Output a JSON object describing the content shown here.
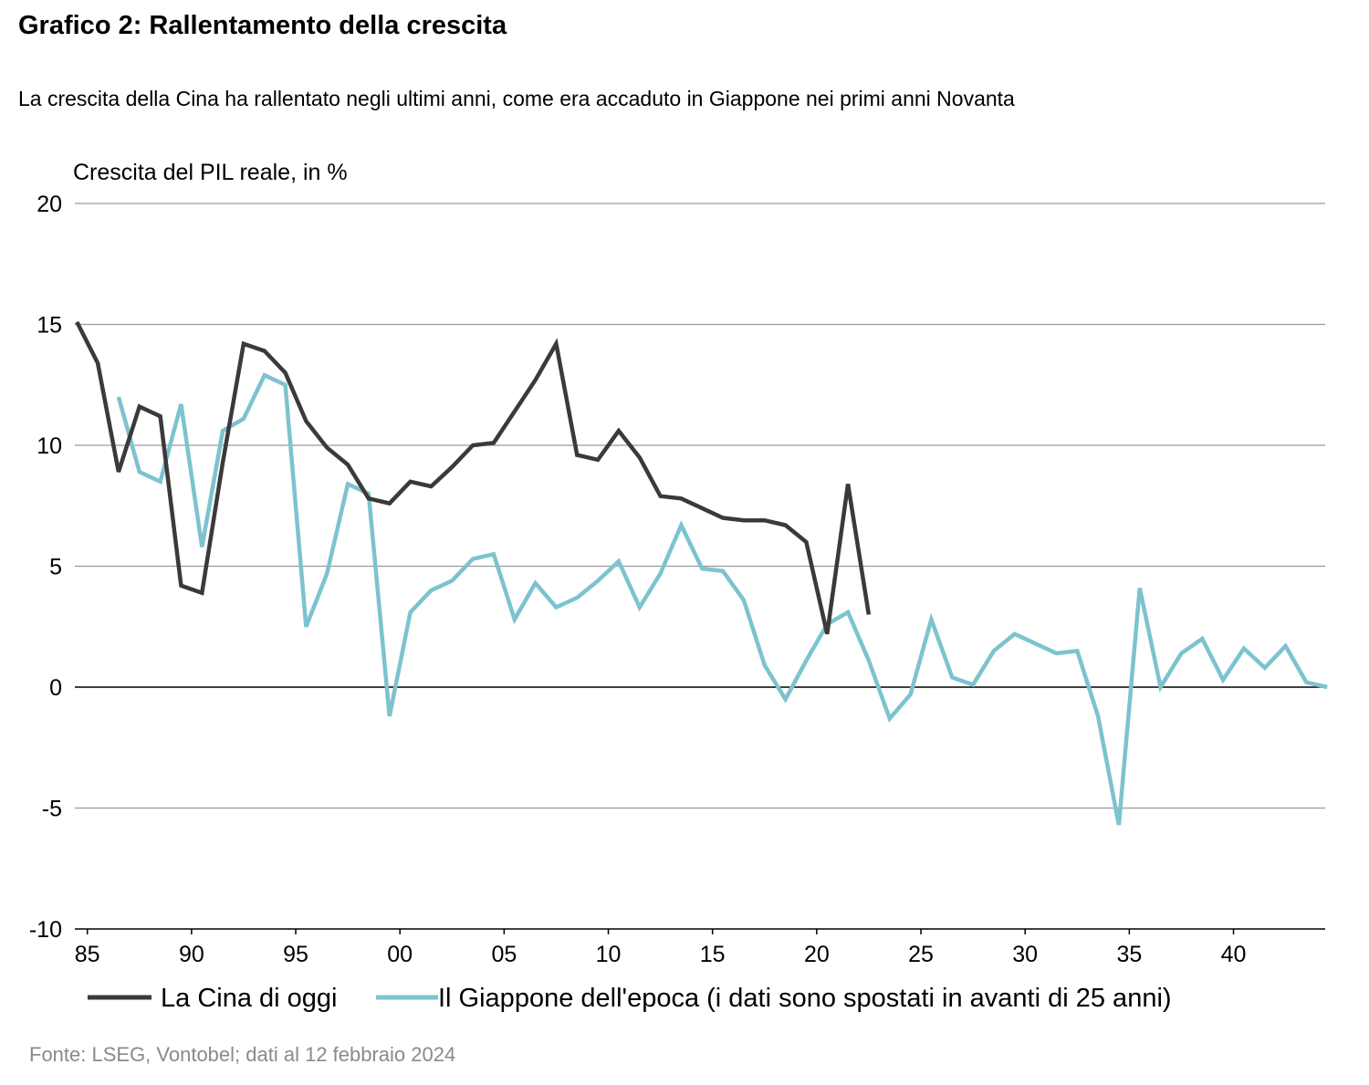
{
  "page": {
    "title": "Grafico 2: Rallentamento della crescita",
    "subtitle": "La crescita della Cina ha rallentato negli ultimi anni, come era accaduto in Giappone nei primi anni Novanta",
    "source": "Fonte: LSEG, Vontobel; dati al 12 febbraio 2024"
  },
  "chart_data": {
    "type": "line",
    "title": "Grafico 2: Rallentamento della crescita",
    "ylabel": "Crescita del PIL reale, in %",
    "xlabel": "",
    "ylim": [
      -10,
      20
    ],
    "xlim": [
      1984.4,
      2044.4
    ],
    "yticks": [
      20,
      15,
      10,
      5,
      0,
      -5,
      -10
    ],
    "yticklabels": [
      "20",
      "15",
      "10",
      "5",
      "0",
      "-5",
      "-10"
    ],
    "xticks": [
      1985,
      1990,
      1995,
      2000,
      2005,
      2010,
      2015,
      2020,
      2025,
      2030,
      2035,
      2040
    ],
    "xticklabels": [
      "85",
      "90",
      "95",
      "00",
      "05",
      "10",
      "15",
      "20",
      "25",
      "30",
      "35",
      "40"
    ],
    "grid": "horizontal",
    "legend_position": "bottom",
    "series": [
      {
        "name": "La Cina di oggi",
        "color": "#3a3a3a",
        "x": [
          1984.5,
          1985.5,
          1986.5,
          1987.5,
          1988.5,
          1989.5,
          1990.5,
          1991.5,
          1992.5,
          1993.5,
          1994.5,
          1995.5,
          1996.5,
          1997.5,
          1998.5,
          1999.5,
          2000.5,
          2001.5,
          2002.5,
          2003.5,
          2004.5,
          2005.5,
          2006.5,
          2007.5,
          2008.5,
          2009.5,
          2010.5,
          2011.5,
          2012.5,
          2013.5,
          2014.5,
          2015.5,
          2016.5,
          2017.5,
          2018.5,
          2019.5,
          2020.5,
          2021.5,
          2022.5
        ],
        "y": [
          15.1,
          13.4,
          8.9,
          11.6,
          11.2,
          4.2,
          3.9,
          9.3,
          14.2,
          13.9,
          13.0,
          11.0,
          9.9,
          9.2,
          7.8,
          7.6,
          8.5,
          8.3,
          9.1,
          10.0,
          10.1,
          11.4,
          12.7,
          14.2,
          9.6,
          9.4,
          10.6,
          9.5,
          7.9,
          7.8,
          7.4,
          7.0,
          6.9,
          6.9,
          6.7,
          6.0,
          2.2,
          8.4,
          3.0
        ]
      },
      {
        "name": "Il Giappone dell'epoca (i dati sono spostati in avanti di 25 anni)",
        "color": "#7cc3cf",
        "x": [
          1986.5,
          1987.5,
          1988.5,
          1989.5,
          1990.5,
          1991.5,
          1992.5,
          1993.5,
          1994.5,
          1995.5,
          1996.5,
          1997.5,
          1998.5,
          1999.5,
          2000.5,
          2001.5,
          2002.5,
          2003.5,
          2004.5,
          2005.5,
          2006.5,
          2007.5,
          2008.5,
          2009.5,
          2010.5,
          2011.5,
          2012.5,
          2013.5,
          2014.5,
          2015.5,
          2016.5,
          2017.5,
          2018.5,
          2019.5,
          2020.5,
          2021.5,
          2022.5,
          2023.5,
          2024.5,
          2025.5,
          2026.5,
          2027.5,
          2028.5,
          2029.5,
          2030.5,
          2031.5,
          2032.5,
          2033.5,
          2034.5,
          2035.5,
          2036.5,
          2037.5,
          2038.5,
          2039.5,
          2040.5,
          2041.5,
          2042.5,
          2043.5,
          2044.5
        ],
        "y": [
          12.0,
          8.9,
          8.5,
          11.7,
          5.8,
          10.6,
          11.1,
          12.9,
          12.5,
          2.5,
          4.7,
          8.4,
          8.0,
          -1.2,
          3.1,
          4.0,
          4.4,
          5.3,
          5.5,
          2.8,
          4.3,
          3.3,
          3.7,
          4.4,
          5.2,
          3.3,
          4.7,
          6.7,
          4.9,
          4.8,
          3.6,
          0.9,
          -0.5,
          1.1,
          2.6,
          3.1,
          1.1,
          -1.3,
          -0.3,
          2.8,
          0.4,
          0.1,
          1.5,
          2.2,
          1.8,
          1.4,
          1.5,
          -1.2,
          -5.7,
          4.1,
          0.0,
          1.4,
          2.0,
          0.3,
          1.6,
          0.8,
          1.7,
          0.2,
          0.0
        ]
      }
    ]
  }
}
